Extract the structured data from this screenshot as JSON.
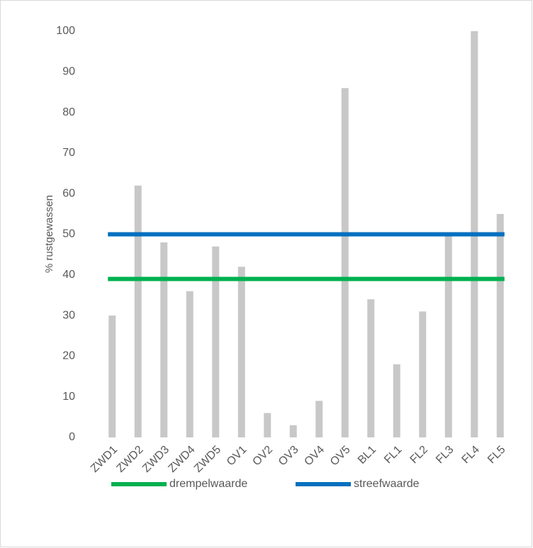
{
  "chart_data": {
    "type": "bar",
    "y_label": "% rustgewassen",
    "categories": [
      "ZWD1",
      "ZWD2",
      "ZWD3",
      "ZWD4",
      "ZWD5",
      "OV1",
      "OV2",
      "OV3",
      "OV4",
      "OV5",
      "BL1",
      "FL1",
      "FL2",
      "FL3",
      "FL4",
      "FL5"
    ],
    "values": [
      30,
      62,
      48,
      36,
      47,
      42,
      6,
      3,
      9,
      86,
      34,
      18,
      31,
      50,
      100,
      55
    ],
    "color": "#c8c8c8",
    "reference_lines": [
      {
        "name": "drempelwaarde",
        "color": "#00b050",
        "value": 39
      },
      {
        "name": "streefwaarde",
        "color": "#0070c0",
        "value": 50
      }
    ],
    "ylim": [
      0,
      100
    ],
    "yticks": [
      0,
      10,
      20,
      30,
      40,
      50,
      60,
      70,
      80,
      90,
      100
    ],
    "grid": false,
    "legend": "bottom"
  }
}
